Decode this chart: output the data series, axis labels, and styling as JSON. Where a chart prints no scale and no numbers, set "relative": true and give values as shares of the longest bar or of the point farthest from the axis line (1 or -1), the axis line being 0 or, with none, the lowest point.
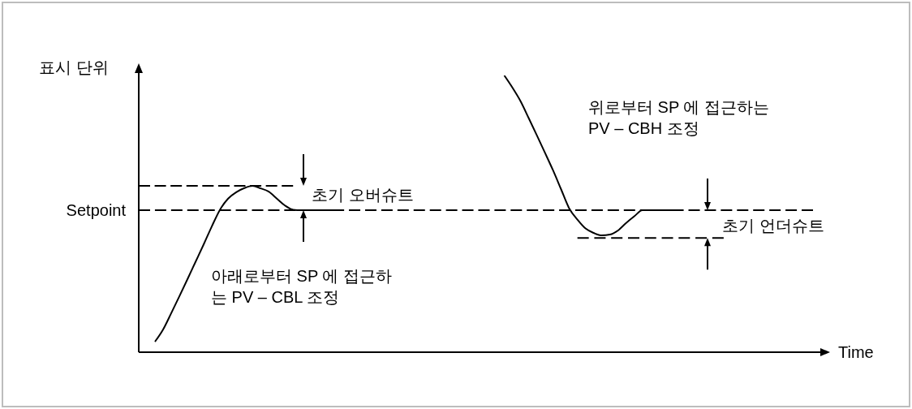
{
  "chart_data": {
    "type": "line",
    "relative": true,
    "xlabel": "Time",
    "ylabel": "표시 단위",
    "marker": "none",
    "line_style": "solid",
    "annotations": [
      "위로부터 SP 에 접근하는\nPV – CBH 조정",
      "초기 오버슈트",
      "초기 언더슈트",
      "아래로부터 SP 에 접근하\n는 PV – CBL 조정"
    ],
    "ref_lines": [
      {
        "axis": "y",
        "value": 0.513,
        "label": "Setpoint",
        "color": "#000000",
        "line_style": "dashed"
      }
    ],
    "categories": [
      null,
      null,
      null,
      null,
      null,
      null,
      null,
      null,
      null,
      null,
      null,
      null,
      null,
      null,
      null,
      null,
      null,
      null,
      null,
      null,
      null,
      null,
      null,
      null,
      null,
      null,
      null,
      null,
      null,
      null,
      null,
      null,
      null,
      null,
      null,
      null,
      null,
      null,
      null,
      null,
      null,
      null,
      null,
      null,
      null,
      null,
      null,
      null,
      null,
      null,
      null,
      null,
      null,
      null,
      null,
      null,
      null,
      null,
      null,
      null,
      null,
      null,
      null,
      null,
      null,
      null,
      null,
      null,
      null,
      null,
      null,
      null,
      null,
      null,
      null,
      null,
      null,
      null,
      null,
      null,
      null,
      null,
      null,
      null
    ],
    "series": [
      {
        "color": "#000000",
        "values": [
          null,
          null,
          0.038,
          0.082,
          0.141,
          0.202,
          0.264,
          0.327,
          0.39,
          0.455,
          0.515,
          0.555,
          0.578,
          0.593,
          0.601,
          0.592,
          0.58,
          0.555,
          0.53,
          0.515,
          0.513,
          0.513,
          0.513,
          0.513,
          0.513,
          null,
          null,
          null,
          null,
          null,
          null,
          null,
          null,
          null,
          null,
          null,
          null,
          null,
          null,
          null,
          null,
          null,
          null,
          null,
          null,
          null,
          null,
          null,
          null,
          null,
          null,
          null,
          null,
          null,
          null,
          null,
          null,
          null,
          null,
          null,
          null,
          null,
          null,
          null,
          null,
          null,
          null,
          null,
          null,
          null,
          null,
          null,
          null,
          null,
          null,
          null,
          null,
          null,
          null,
          null,
          null,
          null,
          null,
          null
        ]
      },
      {
        "color": "#000000",
        "values": [
          null,
          null,
          null,
          null,
          null,
          null,
          null,
          null,
          null,
          null,
          null,
          null,
          null,
          null,
          null,
          null,
          null,
          null,
          null,
          null,
          null,
          null,
          null,
          null,
          null,
          null,
          null,
          null,
          null,
          null,
          null,
          null,
          null,
          null,
          null,
          null,
          null,
          null,
          null,
          null,
          null,
          null,
          null,
          null,
          null,
          1,
          0.956,
          0.907,
          0.846,
          0.784,
          0.721,
          0.657,
          0.588,
          0.519,
          0.479,
          0.447,
          0.431,
          0.422,
          0.425,
          0.44,
          0.467,
          0.491,
          0.513,
          0.513,
          0.513,
          0.513,
          0.513,
          null,
          null,
          null,
          null,
          null,
          null,
          null,
          null,
          null,
          null,
          null,
          null,
          null,
          null,
          null,
          null,
          null
        ]
      },
      {
        "color": "#000000",
        "line_style": "dashed",
        "values": [
          0.601,
          0.601,
          0.601,
          0.601,
          0.601,
          0.601,
          0.601,
          0.601,
          0.601,
          0.601,
          0.601,
          0.601,
          0.601,
          0.601,
          0.601,
          0.601,
          0.601,
          0.601,
          0.601,
          0.601,
          null,
          null,
          null,
          null,
          null,
          null,
          null,
          null,
          null,
          null,
          null,
          null,
          null,
          null,
          null,
          null,
          null,
          null,
          null,
          null,
          null,
          null,
          null,
          null,
          null,
          null,
          null,
          null,
          null,
          null,
          null,
          null,
          null,
          null,
          null,
          null,
          null,
          null,
          null,
          null,
          null,
          null,
          null,
          null,
          null,
          null,
          null,
          null,
          null,
          null,
          null,
          null,
          null,
          null,
          null,
          null,
          null,
          null,
          null,
          null,
          null,
          null,
          null,
          null
        ]
      },
      {
        "color": "#000000",
        "line_style": "dashed",
        "values": [
          null,
          null,
          null,
          null,
          null,
          null,
          null,
          null,
          null,
          null,
          null,
          null,
          null,
          null,
          null,
          null,
          null,
          null,
          null,
          null,
          null,
          null,
          null,
          null,
          null,
          null,
          null,
          null,
          null,
          null,
          null,
          null,
          null,
          null,
          null,
          null,
          null,
          null,
          null,
          null,
          null,
          null,
          null,
          null,
          null,
          null,
          null,
          null,
          null,
          null,
          null,
          null,
          null,
          null,
          0.413,
          0.413,
          0.413,
          0.413,
          0.413,
          0.413,
          0.413,
          0.413,
          0.413,
          0.413,
          0.413,
          0.413,
          0.413,
          0.413,
          0.413,
          0.413,
          0.413,
          0.413,
          0.413,
          null,
          null,
          null,
          null,
          null,
          null,
          null,
          null,
          null,
          null,
          null
        ]
      }
    ]
  }
}
